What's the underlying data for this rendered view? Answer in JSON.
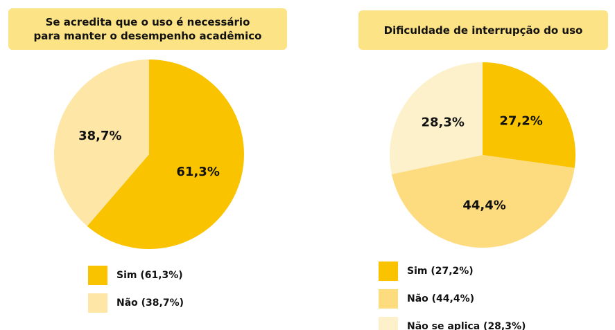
{
  "chart_data": [
    {
      "type": "pie",
      "title": "Se acredita que o uso é necessário\npara manter o desempenho acadêmico",
      "categories": [
        "Sim (61,3%)",
        "Não (38,7%)"
      ],
      "values": [
        61.3,
        38.7
      ],
      "value_labels": [
        "61,3%",
        "38,7%"
      ],
      "colors": [
        "#f9c300",
        "#fde6a6"
      ]
    },
    {
      "type": "pie",
      "title": "Dificuldade de interrupção do uso",
      "categories": [
        "Sim (27,2%)",
        "Não (44,4%)",
        "Não se aplica (28,3%)"
      ],
      "values": [
        27.2,
        44.4,
        28.3
      ],
      "value_labels": [
        "27,2%",
        "44,4%",
        "28,3%"
      ],
      "colors": [
        "#f9c300",
        "#fddb7f",
        "#fdf1cc"
      ]
    }
  ]
}
